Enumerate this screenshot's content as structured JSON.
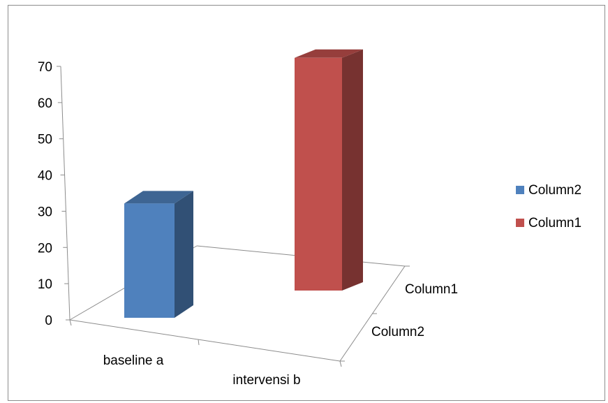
{
  "chart_data": {
    "type": "bar",
    "three_d": true,
    "categories": [
      "baseline a",
      "intervensi b"
    ],
    "series": [
      {
        "name": "Column2",
        "color": "#4f81bd",
        "values": [
          33,
          null
        ]
      },
      {
        "name": "Column1",
        "color": "#c0504d",
        "values": [
          null,
          70
        ]
      }
    ],
    "y_ticks": [
      "0",
      "10",
      "20",
      "30",
      "40",
      "50",
      "60",
      "70"
    ],
    "ylim": [
      0,
      70
    ],
    "depth_axis_labels": [
      "Column1",
      "Column2"
    ],
    "legend": {
      "position": "right",
      "items": [
        {
          "label": "Column2",
          "color": "#4f81bd"
        },
        {
          "label": "Column1",
          "color": "#c0504d"
        }
      ]
    },
    "grid": false,
    "title": "",
    "xlabel": "",
    "ylabel": ""
  }
}
